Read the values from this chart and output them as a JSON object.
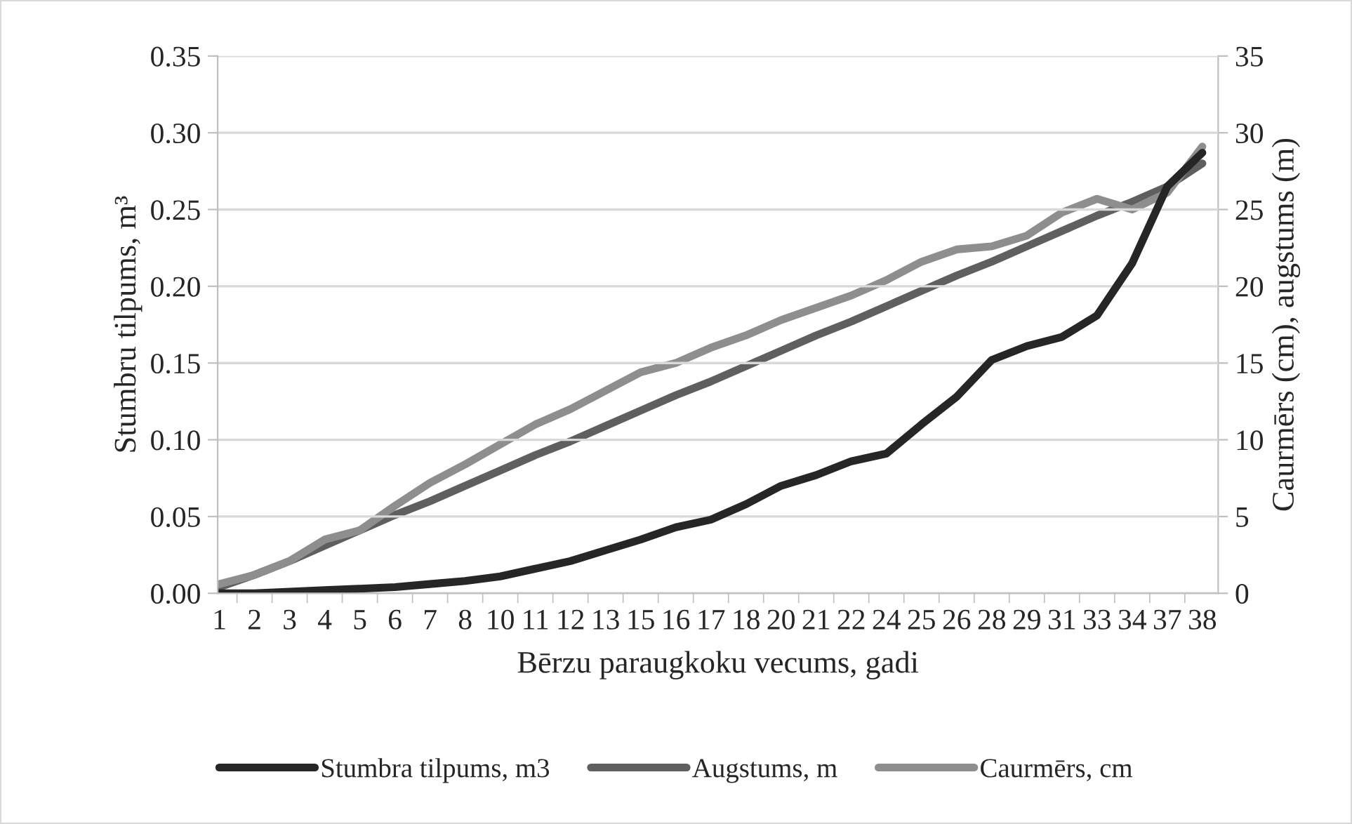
{
  "chart_data": {
    "type": "line",
    "categories": [
      "1",
      "2",
      "3",
      "4",
      "5",
      "6",
      "7",
      "8",
      "10",
      "11",
      "12",
      "13",
      "15",
      "16",
      "17",
      "18",
      "20",
      "21",
      "22",
      "24",
      "25",
      "26",
      "28",
      "29",
      "31",
      "33",
      "34",
      "37",
      "38"
    ],
    "xlabel": "Bērzu paraugkoku vecums, gadi",
    "ylabel": "Stumbru tilpums, m³",
    "y2label": "Caurmērs (cm), augstums (m)",
    "ylim": [
      0,
      0.35
    ],
    "yticks": [
      {
        "value": 0,
        "label": "0.00"
      },
      {
        "value": 0.05,
        "label": "0.05"
      },
      {
        "value": 0.1,
        "label": "0.10"
      },
      {
        "value": 0.15,
        "label": "0.15"
      },
      {
        "value": 0.2,
        "label": "0.20"
      },
      {
        "value": 0.25,
        "label": "0.25"
      },
      {
        "value": 0.3,
        "label": "0.30"
      },
      {
        "value": 0.35,
        "label": "0.35"
      }
    ],
    "y2lim": [
      0,
      35
    ],
    "y2ticks": [
      0,
      5,
      10,
      15,
      20,
      25,
      30,
      35
    ],
    "grid": "y",
    "legend": "bottom",
    "marker": "none",
    "line_style": "solid",
    "series": [
      {
        "name": "Stumbra tilpums, m3",
        "color": "#262626",
        "values": [
          0.0,
          0.0,
          0.001,
          0.002,
          0.003,
          0.004,
          0.006,
          0.008,
          0.011,
          0.016,
          0.021,
          0.028,
          0.035,
          0.043,
          0.048,
          0.058,
          0.07,
          0.077,
          0.086,
          0.091,
          0.11,
          0.128,
          0.152,
          0.161,
          0.167,
          0.181,
          0.215,
          0.265,
          0.287
        ]
      },
      {
        "name": "Augstums, m",
        "color": "#5f5f5f",
        "axis": "y2",
        "values": [
          0.4,
          1.2,
          2.1,
          3.1,
          4.1,
          5.1,
          6.0,
          7.0,
          8.0,
          9.0,
          9.9,
          10.9,
          11.9,
          12.9,
          13.8,
          14.8,
          15.8,
          16.8,
          17.7,
          18.7,
          19.7,
          20.7,
          21.6,
          22.6,
          23.6,
          24.6,
          25.5,
          26.5,
          28.0
        ]
      },
      {
        "name": "Caurmērs, cm",
        "color": "#8e8e8e",
        "axis": "y2",
        "values": [
          0.6,
          1.2,
          2.1,
          3.5,
          4.1,
          5.7,
          7.2,
          8.4,
          9.7,
          11.0,
          12.0,
          13.2,
          14.4,
          15.0,
          16.0,
          16.8,
          17.8,
          18.6,
          19.4,
          20.4,
          21.6,
          22.4,
          22.6,
          23.3,
          24.8,
          25.7,
          25.0,
          26.1,
          29.1
        ]
      }
    ]
  }
}
